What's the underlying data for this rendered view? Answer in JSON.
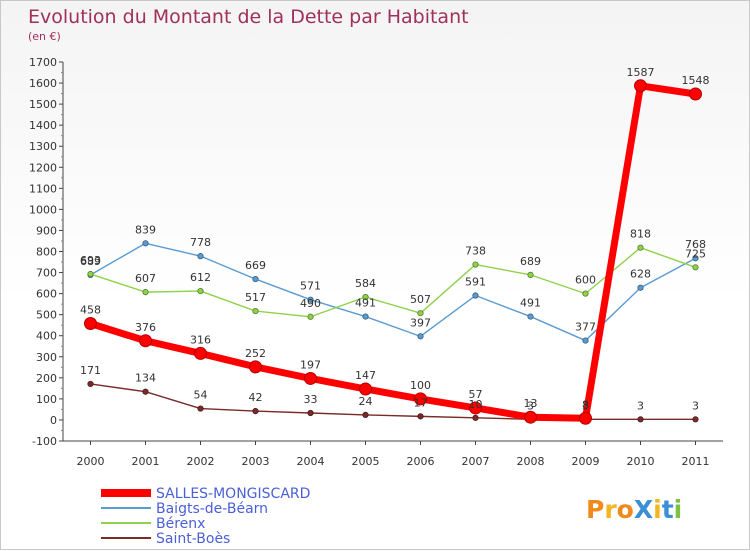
{
  "chart_data": {
    "type": "line",
    "title": "Evolution du Montant de la Dette par Habitant",
    "subtitle": "(en €)",
    "x": [
      "2000",
      "2001",
      "2002",
      "2003",
      "2004",
      "2005",
      "2006",
      "2007",
      "2008",
      "2009",
      "2010",
      "2011"
    ],
    "ylim": [
      -100,
      1700
    ],
    "yticks": [
      -100,
      0,
      100,
      200,
      300,
      400,
      500,
      600,
      700,
      800,
      900,
      1000,
      1100,
      1200,
      1300,
      1400,
      1500,
      1600,
      1700
    ],
    "grid": false,
    "legend_position": "bottom-left",
    "series": [
      {
        "name": "Baigts-de-Béarn",
        "color": "#5a9bd0",
        "values": [
          689,
          839,
          778,
          669,
          571,
          491,
          397,
          591,
          491,
          377,
          628,
          768
        ]
      },
      {
        "name": "Bérenx",
        "color": "#8fd14a",
        "values": [
          693,
          607,
          612,
          517,
          490,
          584,
          507,
          738,
          689,
          600,
          818,
          725
        ]
      },
      {
        "name": "Saint-Boès",
        "color": "#7a2a2a",
        "values": [
          171,
          134,
          54,
          42,
          33,
          24,
          17,
          10,
          3,
          3,
          3,
          3
        ]
      },
      {
        "name": "SALLES-MONGISCARD",
        "color": "#ff0000",
        "values": [
          458,
          376,
          316,
          252,
          197,
          147,
          100,
          57,
          13,
          8,
          1587,
          1548
        ]
      }
    ]
  },
  "legend": [
    {
      "name": "SALLES-MONGISCARD",
      "color": "#ff0000"
    },
    {
      "name": "Baigts-de-Béarn",
      "color": "#5a9bd0"
    },
    {
      "name": "Bérenx",
      "color": "#8fd14a"
    },
    {
      "name": "Saint-Boès",
      "color": "#7a2a2a"
    }
  ],
  "logo": {
    "text": "ProXiti"
  }
}
